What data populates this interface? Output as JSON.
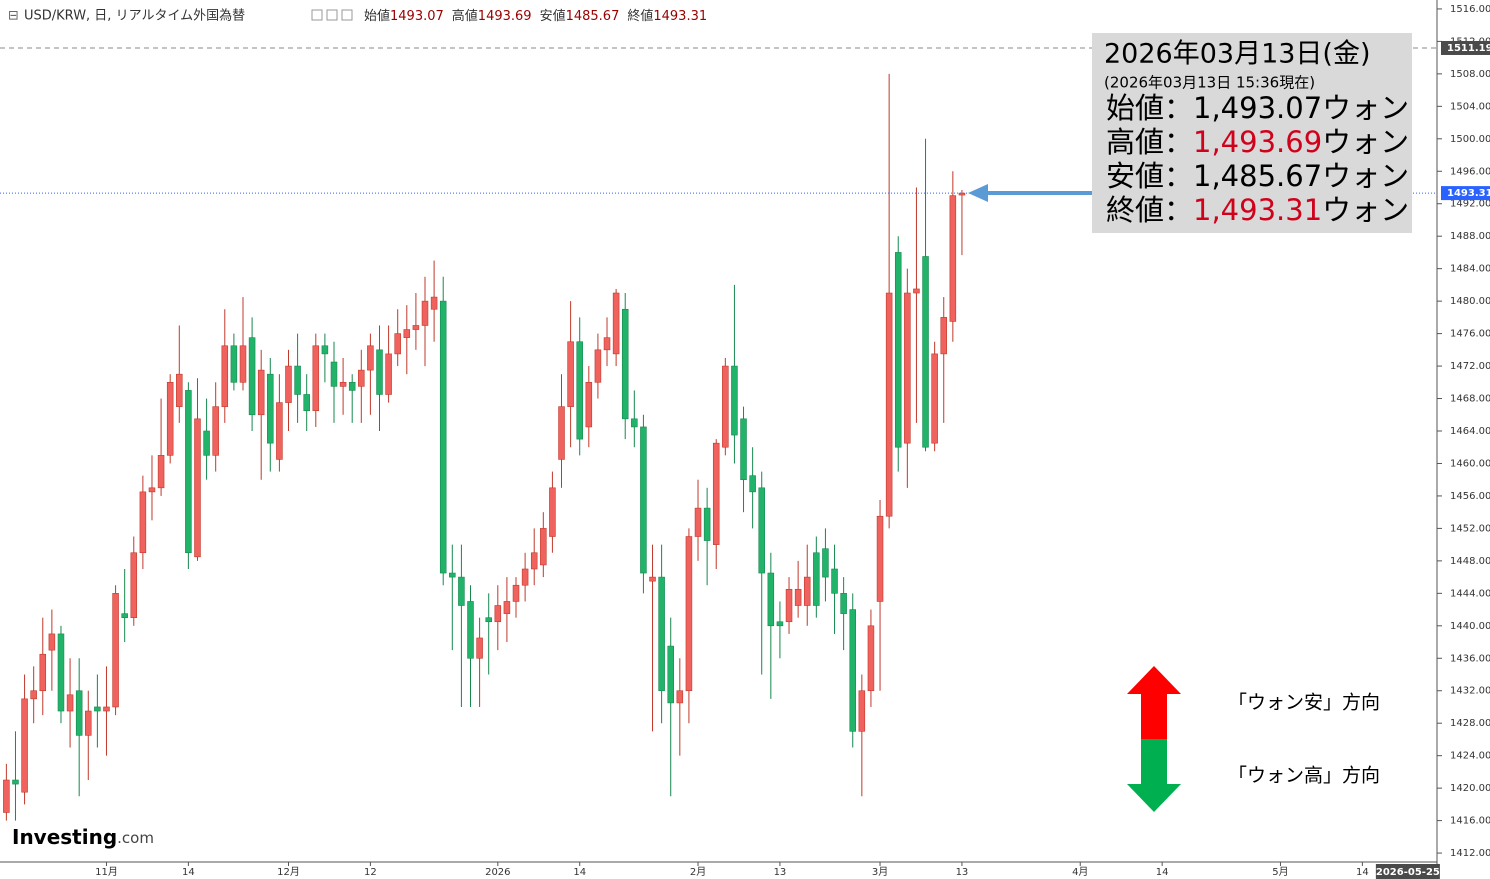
{
  "header": {
    "title": "USD/KRW, 日, リアルタイム外国為替",
    "labels": [
      "始値",
      "高値",
      "安値",
      "終値"
    ]
  },
  "info_box": {
    "date": "2026年03月13日(金)",
    "note": "(2026年03月13日 15:36現在)",
    "rows": [
      {
        "label": "始値：",
        "value": "1,493.07",
        "unit": "ウォン",
        "value_color": "#000000"
      },
      {
        "label": "高値：",
        "value": "1,493.69",
        "unit": "ウォン",
        "value_color": "#d0021b"
      },
      {
        "label": "安値：",
        "value": "1,485.67",
        "unit": "ウォン",
        "value_color": "#000000"
      },
      {
        "label": "終値：",
        "value": "1,493.31",
        "unit": "ウォン",
        "value_color": "#d0021b"
      }
    ]
  },
  "legend": {
    "up": "「ウォン安」方向",
    "down": "「ウォン高」方向"
  },
  "brand": {
    "name": "Investing",
    "suffix": ".com"
  },
  "chart_data": {
    "type": "candlestick",
    "up_color": "#f0625d",
    "down_color": "#22b36a",
    "open": [
      1417,
      1421,
      1419.5,
      1431,
      1432,
      1437,
      1439,
      1429.5,
      1432,
      1426.5,
      1430,
      1429.5,
      1430,
      1441.5,
      1441,
      1449,
      1456.5,
      1457,
      1461,
      1467,
      1469,
      1448.5,
      1464,
      1461,
      1467,
      1474.5,
      1470,
      1475.5,
      1466,
      1471,
      1460.5,
      1467.5,
      1472,
      1468.5,
      1466.5,
      1474.5,
      1472.5,
      1469.5,
      1470,
      1469.5,
      1471.5,
      1474,
      1468.5,
      1473.5,
      1475.5,
      1476.5,
      1477,
      1479,
      1480,
      1446.5,
      1446,
      1443,
      1436,
      1441,
      1440.5,
      1441.5,
      1443,
      1445,
      1447,
      1447.5,
      1451,
      1460.5,
      1467,
      1475,
      1464.5,
      1470,
      1474,
      1473.5,
      1479,
      1465.5,
      1464.5,
      1445.5,
      1446,
      1437.5,
      1430.5,
      1432,
      1451,
      1454.5,
      1450,
      1462,
      1472,
      1465.5,
      1458.5,
      1457,
      1446.5,
      1440.5,
      1440.5,
      1442.5,
      1442.5,
      1449,
      1449.5,
      1447,
      1444,
      1442,
      1427,
      1432,
      1443,
      1453.5,
      1486,
      1462.5,
      1481,
      1485.5,
      1462.5,
      1473.5,
      1477.5,
      1493.07
    ],
    "high": [
      1423,
      1427,
      1434,
      1435,
      1441,
      1442,
      1440,
      1436,
      1436,
      1432,
      1434,
      1435,
      1445,
      1447,
      1451,
      1458.5,
      1461,
      1468,
      1471,
      1477,
      1470,
      1470.5,
      1468,
      1470,
      1479,
      1476,
      1480.5,
      1478,
      1474,
      1473,
      1471,
      1474,
      1476,
      1471,
      1476,
      1476,
      1475,
      1473,
      1471,
      1474,
      1476,
      1477,
      1477,
      1479,
      1479.5,
      1481,
      1483,
      1485,
      1483,
      1450,
      1450,
      1445,
      1441,
      1444,
      1445,
      1446,
      1446,
      1449,
      1452,
      1454,
      1459,
      1471,
      1480,
      1478,
      1472,
      1476,
      1478,
      1481.5,
      1481,
      1469,
      1466,
      1450,
      1450,
      1441,
      1436,
      1452,
      1458,
      1457,
      1463,
      1473,
      1482,
      1467,
      1462,
      1459,
      1449,
      1443,
      1446,
      1448,
      1450,
      1451,
      1452,
      1450,
      1446,
      1444,
      1434,
      1442,
      1455.5,
      1508,
      1488,
      1484,
      1494,
      1500,
      1475,
      1480.5,
      1496,
      1493.69
    ],
    "low": [
      1416,
      1416,
      1418,
      1428,
      1429,
      1432,
      1428,
      1425,
      1419,
      1421,
      1425,
      1424,
      1429,
      1438,
      1440,
      1447,
      1453,
      1456,
      1460,
      1465,
      1447,
      1448,
      1458,
      1459,
      1465,
      1469,
      1469,
      1464,
      1458,
      1459,
      1459,
      1464,
      1465,
      1464,
      1464.5,
      1470,
      1465,
      1466,
      1465,
      1465,
      1466,
      1464,
      1467.5,
      1472,
      1471,
      1474,
      1472,
      1475,
      1445,
      1437,
      1430,
      1430,
      1430,
      1434,
      1437,
      1438,
      1441,
      1443,
      1445,
      1446,
      1449,
      1457,
      1462,
      1461,
      1462,
      1468,
      1472,
      1472,
      1463,
      1462,
      1444,
      1427,
      1428,
      1419,
      1424,
      1428,
      1448,
      1445,
      1447,
      1461,
      1460,
      1454,
      1452,
      1434,
      1431,
      1436,
      1439,
      1441,
      1440,
      1441,
      1443,
      1439,
      1437,
      1425,
      1419,
      1430,
      1432,
      1452,
      1459,
      1457,
      1465,
      1461.5,
      1461.5,
      1465,
      1475,
      1485.67
    ],
    "close": [
      1421,
      1420.5,
      1431,
      1432,
      1436.5,
      1439,
      1429.5,
      1431.5,
      1426.5,
      1429.5,
      1429.5,
      1430,
      1444,
      1441,
      1449,
      1456.5,
      1457,
      1461,
      1470,
      1471,
      1449,
      1465.5,
      1461,
      1467,
      1474.5,
      1470,
      1474.5,
      1466,
      1471.5,
      1462.5,
      1467.5,
      1472,
      1468.5,
      1466.5,
      1474.5,
      1473.5,
      1469.5,
      1470,
      1469,
      1471.5,
      1474.5,
      1468.5,
      1473.5,
      1476,
      1476.5,
      1477,
      1480,
      1480.5,
      1446.5,
      1446,
      1442.5,
      1436,
      1438.5,
      1440.5,
      1442.5,
      1443,
      1445,
      1447,
      1449,
      1452,
      1457,
      1467,
      1475,
      1463,
      1470,
      1474,
      1475.5,
      1481,
      1465.5,
      1464.5,
      1446.5,
      1446,
      1432,
      1430.5,
      1432,
      1451,
      1454.5,
      1450.5,
      1462.5,
      1472,
      1463.5,
      1458,
      1456.5,
      1446.5,
      1440,
      1440,
      1444.5,
      1444.5,
      1446,
      1442.5,
      1446,
      1444,
      1441.5,
      1427,
      1432,
      1440,
      1453.5,
      1481,
      1462,
      1481,
      1481.5,
      1462,
      1473.5,
      1478,
      1493,
      1493.31
    ],
    "xlim": [
      -0.7,
      157.2
    ],
    "xticks": [
      {
        "value": 11,
        "label": "11月"
      },
      {
        "value": 20,
        "label": "14"
      },
      {
        "value": 31,
        "label": "12月"
      },
      {
        "value": 40,
        "label": "12"
      },
      {
        "value": 54,
        "label": "2026"
      },
      {
        "value": 63,
        "label": "14"
      },
      {
        "value": 76,
        "label": "2月"
      },
      {
        "value": 85,
        "label": "13"
      },
      {
        "value": 96,
        "label": "3月"
      },
      {
        "value": 105,
        "label": "13"
      },
      {
        "value": 118,
        "label": "4月"
      },
      {
        "value": 127,
        "label": "14"
      },
      {
        "value": 140,
        "label": "5月"
      },
      {
        "value": 149,
        "label": "14"
      }
    ],
    "x_cursor": {
      "value": 154,
      "label": "2026-05-25"
    },
    "ylim": [
      1410.9,
      1517.1
    ],
    "yticks": [
      {
        "value": 1412,
        "label": "1412.00"
      },
      {
        "value": 1416,
        "label": "1416.00"
      },
      {
        "value": 1420,
        "label": "1420.00"
      },
      {
        "value": 1424,
        "label": "1424.00"
      },
      {
        "value": 1428,
        "label": "1428.00"
      },
      {
        "value": 1432,
        "label": "1432.00"
      },
      {
        "value": 1436,
        "label": "1436.00"
      },
      {
        "value": 1440,
        "label": "1440.00"
      },
      {
        "value": 1444,
        "label": "1444.00"
      },
      {
        "value": 1448,
        "label": "1448.00"
      },
      {
        "value": 1452,
        "label": "1452.00"
      },
      {
        "value": 1456,
        "label": "1456.00"
      },
      {
        "value": 1460,
        "label": "1460.00"
      },
      {
        "value": 1464,
        "label": "1464.00"
      },
      {
        "value": 1468,
        "label": "1468.00"
      },
      {
        "value": 1472,
        "label": "1472.00"
      },
      {
        "value": 1476,
        "label": "1476.00"
      },
      {
        "value": 1480,
        "label": "1480.00"
      },
      {
        "value": 1484,
        "label": "1484.00"
      },
      {
        "value": 1488,
        "label": "1488.00"
      },
      {
        "value": 1492,
        "label": "1492.00"
      },
      {
        "value": 1496,
        "label": "1496.00"
      },
      {
        "value": 1500,
        "label": "1500.00"
      },
      {
        "value": 1504,
        "label": "1504.00"
      },
      {
        "value": 1508,
        "label": "1508.00"
      },
      {
        "value": 1512,
        "label": "1512.00"
      },
      {
        "value": 1516,
        "label": "1516.00"
      }
    ],
    "ref_line": 1511.19,
    "last_price_color": "#2962ff"
  }
}
